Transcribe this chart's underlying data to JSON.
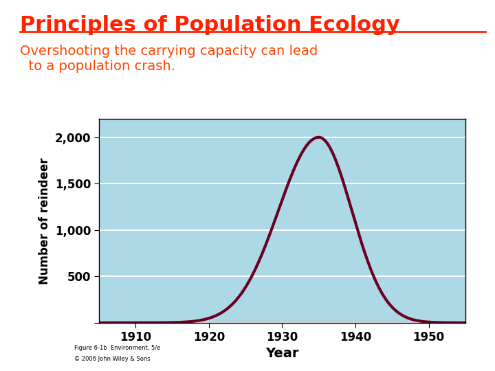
{
  "title": "Principles of Population Ecology",
  "subtitle": "Overshooting the carrying capacity can lead\n  to a population crash.",
  "title_color": "#FF2200",
  "subtitle_color": "#FF4400",
  "plot_bg_color": "#ADD8E6",
  "page_bg_color": "#FFFFFF",
  "line_color": "#6B0020",
  "yticks": [
    0,
    500,
    1000,
    1500,
    2000
  ],
  "xticks": [
    1910,
    1920,
    1930,
    1940,
    1950
  ],
  "xlim": [
    1905,
    1955
  ],
  "ylim": [
    0,
    2200
  ],
  "peak_year": 1935,
  "peak_value": 2000,
  "start_year": 1905,
  "end_year": 1955,
  "sigma_rise": 5.5,
  "sigma_fall": 4.5,
  "caption1": "Figure 6-1b  Environment, 5/e",
  "caption2": "© 2006 John Wiley & Sons"
}
